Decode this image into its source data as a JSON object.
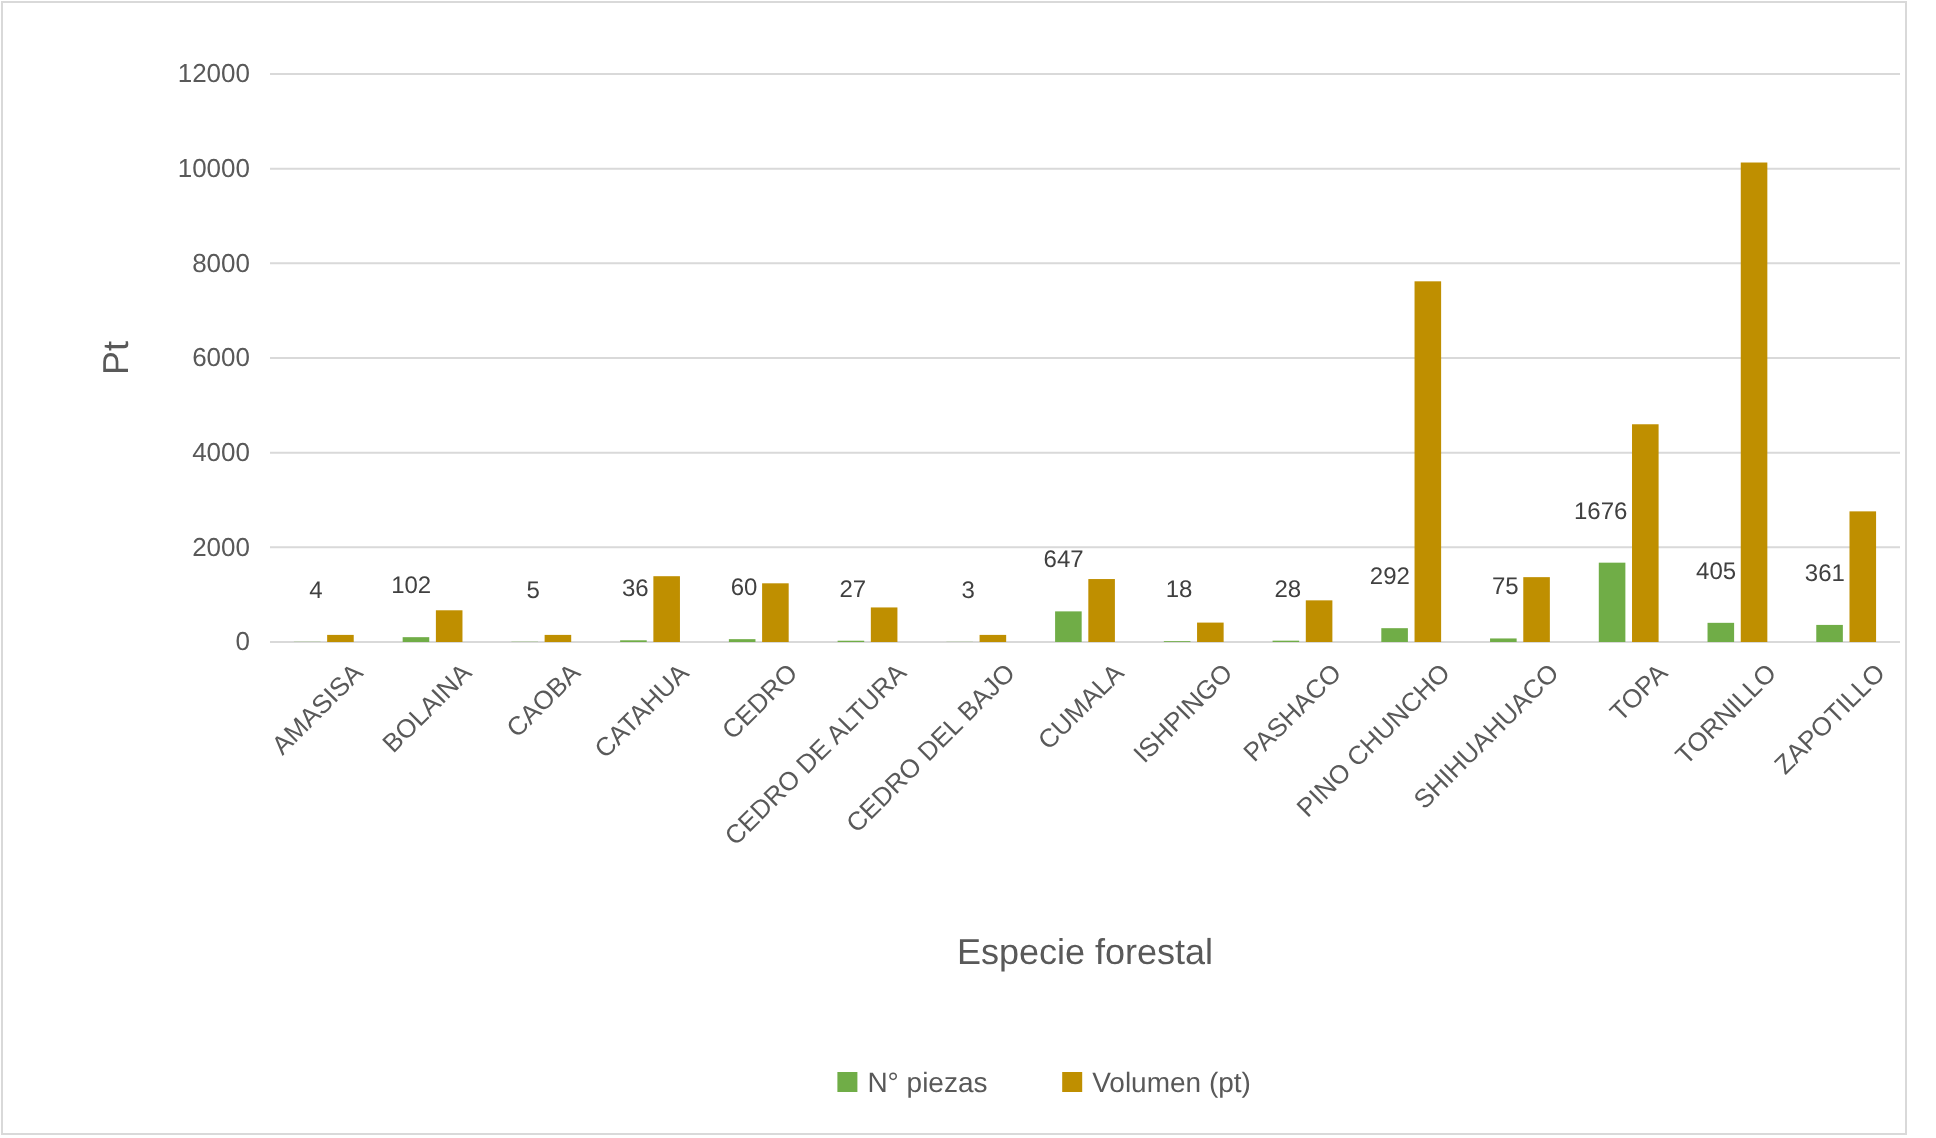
{
  "chart_data": {
    "type": "bar",
    "xlabel": "Especie forestal",
    "ylabel": "Pt",
    "categories": [
      "AMASISA",
      "BOLAINA",
      "CAOBA",
      "CATAHUA",
      "CEDRO",
      "CEDRO DE ALTURA",
      "CEDRO DEL BAJO",
      "CUMALA",
      "ISHPINGO",
      "PASHACO",
      "PINO CHUNCHO",
      "SHIHUAHUACO",
      "TOPA",
      "TORNILLO",
      "ZAPOTILLO"
    ],
    "series": [
      {
        "name": "N° piezas",
        "color": "#70ad47",
        "values": [
          4,
          102,
          5,
          36,
          60,
          27,
          3,
          647,
          18,
          28,
          292,
          75,
          1676,
          405,
          361
        ],
        "value_labels": [
          "4",
          "102",
          "5",
          "36",
          "60",
          "27",
          "3",
          "647",
          "18",
          "28",
          "292",
          "75",
          "1676",
          "405",
          "361"
        ]
      },
      {
        "name": "Volumen (pt)",
        "color": "#bf8f00",
        "values": [
          150,
          670,
          150,
          1390,
          1240,
          730,
          150,
          1330,
          410,
          880,
          7620,
          1370,
          4600,
          10130,
          2760
        ]
      }
    ],
    "ylim": [
      0,
      12000
    ],
    "yticks": [
      0,
      2000,
      4000,
      6000,
      8000,
      10000,
      12000
    ],
    "grid": "y",
    "legend": "bottom"
  }
}
